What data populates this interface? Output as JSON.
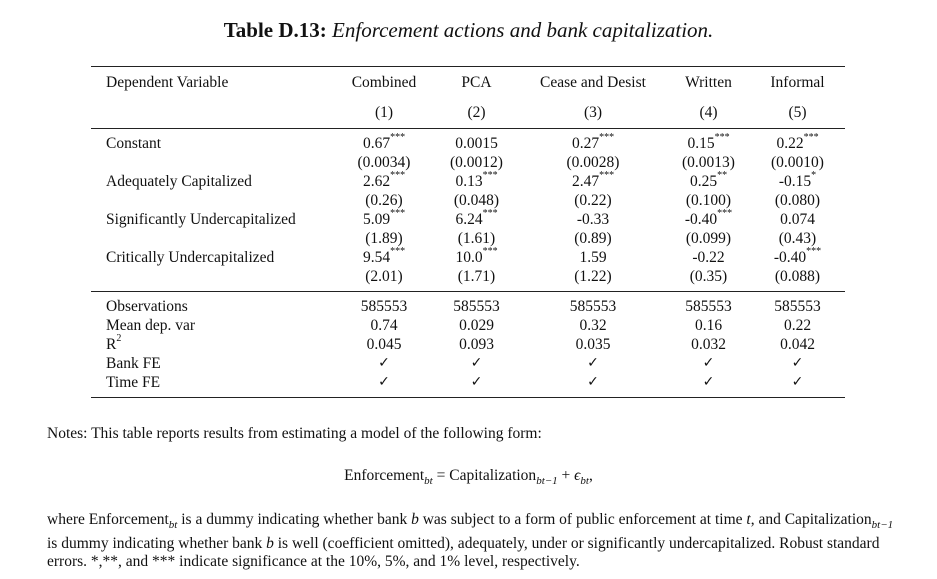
{
  "caption": {
    "label": "Table D.13:",
    "title": "Enforcement actions and bank capitalization."
  },
  "table": {
    "dep_var_label": "Dependent Variable",
    "columns": [
      "Combined",
      "PCA",
      "Cease and Desist",
      "Written",
      "Informal"
    ],
    "col_numbers": [
      "(1)",
      "(2)",
      "(3)",
      "(4)",
      "(5)"
    ],
    "rows": [
      {
        "label": "Constant",
        "coef": [
          "0.67",
          "0.0015",
          "0.27",
          "0.15",
          "0.22"
        ],
        "stars": [
          "***",
          "",
          "***",
          "***",
          "***"
        ],
        "se": [
          "(0.0034)",
          "(0.0012)",
          "(0.0028)",
          "(0.0013)",
          "(0.0010)"
        ]
      },
      {
        "label": "Adequately Capitalized",
        "coef": [
          "2.62",
          "0.13",
          "2.47",
          "0.25",
          "-0.15"
        ],
        "stars": [
          "***",
          "***",
          "***",
          "**",
          "*"
        ],
        "se": [
          "(0.26)",
          "(0.048)",
          "(0.22)",
          "(0.100)",
          "(0.080)"
        ]
      },
      {
        "label": "Significantly Undercapitalized",
        "coef": [
          "5.09",
          "6.24",
          "-0.33",
          "-0.40",
          "0.074"
        ],
        "stars": [
          "***",
          "***",
          "",
          "***",
          ""
        ],
        "se": [
          "(1.89)",
          "(1.61)",
          "(0.89)",
          "(0.099)",
          "(0.43)"
        ]
      },
      {
        "label": "Critically Undercapitalized",
        "coef": [
          "9.54",
          "10.0",
          "1.59",
          "-0.22",
          "-0.40"
        ],
        "stars": [
          "***",
          "***",
          "",
          "",
          "***"
        ],
        "se": [
          "(2.01)",
          "(1.71)",
          "(1.22)",
          "(0.35)",
          "(0.088)"
        ]
      }
    ],
    "stats": [
      {
        "label": "Observations",
        "values": [
          "585553",
          "585553",
          "585553",
          "585553",
          "585553"
        ]
      },
      {
        "label": "Mean dep. var",
        "values": [
          "0.74",
          "0.029",
          "0.32",
          "0.16",
          "0.22"
        ]
      },
      {
        "label": "R",
        "label_sup": "2",
        "values": [
          "0.045",
          "0.093",
          "0.035",
          "0.032",
          "0.042"
        ]
      },
      {
        "label": "Bank FE",
        "values": [
          "✓",
          "✓",
          "✓",
          "✓",
          "✓"
        ]
      },
      {
        "label": "Time FE",
        "values": [
          "✓",
          "✓",
          "✓",
          "✓",
          "✓"
        ]
      }
    ]
  },
  "notes": {
    "intro": "Notes: This table reports results from estimating a model of the following form:",
    "eq_lhs": "Enforcement",
    "eq_lhs_sub": "bt",
    "eq_equals": " = ",
    "eq_rhs": "Capitalization",
    "eq_rhs_sub": "bt−1",
    "eq_plus": " + ",
    "eq_eps": "ϵ",
    "eq_eps_sub": "bt",
    "eq_end": ",",
    "p1": "where Enforcement",
    "p1_sub": "bt",
    "p2": " is a dummy indicating whether bank ",
    "p2_b": "b",
    "p3": " was subject to a form of public enforcement at time ",
    "p3_t": "t",
    "p4": ", and Capitalization",
    "p4_sub": "bt−1",
    "p5": " is dummy indicating whether bank ",
    "p5_b": "b",
    "p6": " is well (coefficient omitted), adequately, under or significantly undercapitalized. Robust standard errors. *,**, and *** indicate significance at the 10%, 5%, and 1% level, respectively."
  }
}
